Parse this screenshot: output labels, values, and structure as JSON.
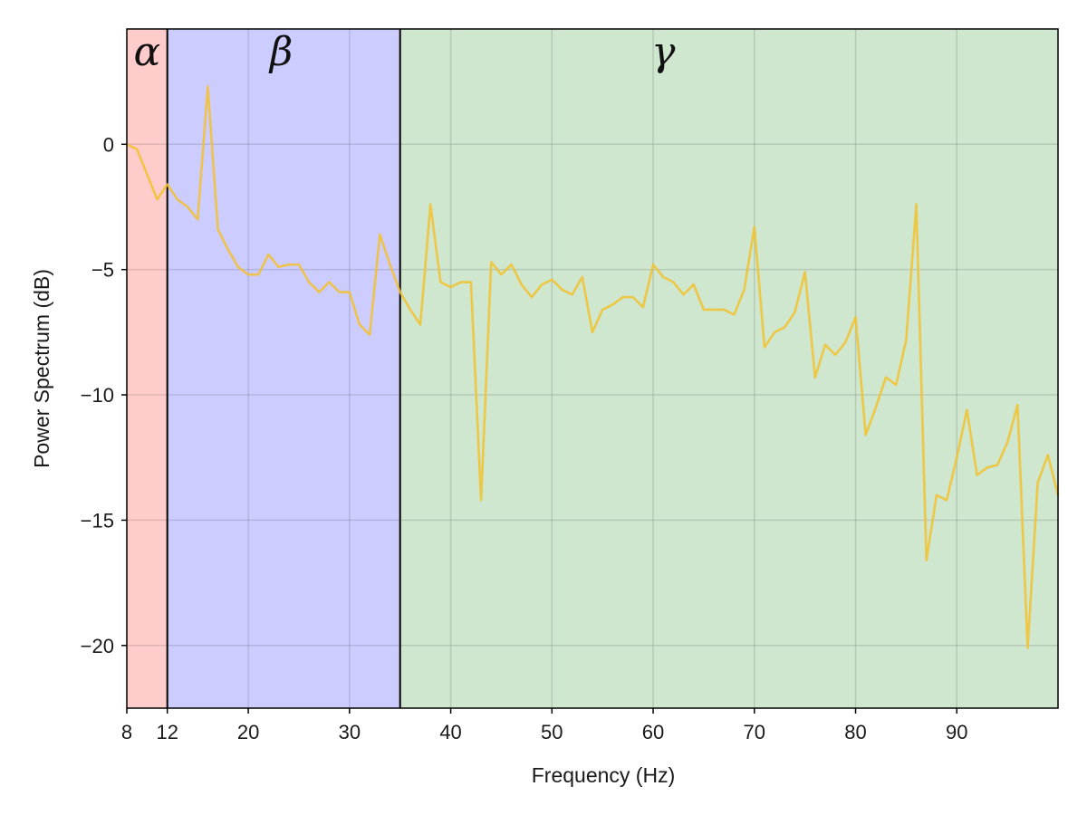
{
  "chart_data": {
    "type": "line",
    "xlabel": "Frequency (Hz)",
    "ylabel": "Power Spectrum (dB)",
    "xlim": [
      8,
      100
    ],
    "ylim": [
      -22.5,
      4.6
    ],
    "grid": true,
    "x_ticks": [
      8,
      12,
      20,
      30,
      40,
      50,
      60,
      70,
      80,
      90
    ],
    "x_tick_labels": [
      "8",
      "12",
      "20",
      "30",
      "40",
      "50",
      "60",
      "70",
      "80",
      "90"
    ],
    "y_ticks": [
      0,
      -5,
      -10,
      -15,
      -20
    ],
    "y_tick_labels": [
      "0",
      "−5",
      "−10",
      "−15",
      "−20"
    ],
    "bands": [
      {
        "label": "α",
        "x_start": 8,
        "x_end": 12,
        "color": "#ffcccc"
      },
      {
        "label": "β",
        "x_start": 12,
        "x_end": 35,
        "color": "#ccccff"
      },
      {
        "label": "γ",
        "x_start": 35,
        "x_end": 100,
        "color": "#cfe6cf"
      }
    ],
    "series": [
      {
        "color": "#f2c12e",
        "x": [
          8,
          9,
          10,
          11,
          12,
          13,
          14,
          15,
          16,
          17,
          18,
          19,
          20,
          21,
          22,
          23,
          24,
          25,
          26,
          27,
          28,
          29,
          30,
          31,
          32,
          33,
          34,
          35,
          36,
          37,
          38,
          39,
          40,
          41,
          42,
          43,
          44,
          45,
          46,
          47,
          48,
          49,
          50,
          51,
          52,
          53,
          54,
          55,
          56,
          57,
          58,
          59,
          60,
          61,
          62,
          63,
          64,
          65,
          66,
          67,
          68,
          69,
          70,
          71,
          72,
          73,
          74,
          75,
          76,
          77,
          78,
          79,
          80,
          81,
          82,
          83,
          84,
          85,
          86,
          87,
          88,
          89,
          90,
          91,
          92,
          93,
          94,
          95,
          96,
          97,
          98,
          99,
          100
        ],
        "values": [
          0,
          -0.2,
          -1.2,
          -2.2,
          -1.6,
          -2.2,
          -2.5,
          -3.0,
          2.3,
          -3.4,
          -4.2,
          -4.9,
          -5.2,
          -5.2,
          -4.4,
          -4.9,
          -4.8,
          -4.8,
          -5.5,
          -5.9,
          -5.5,
          -5.9,
          -5.9,
          -7.2,
          -7.6,
          -3.6,
          -4.8,
          -5.9,
          -6.6,
          -7.2,
          -2.4,
          -5.5,
          -5.7,
          -5.5,
          -5.5,
          -14.2,
          -4.7,
          -5.2,
          -4.8,
          -5.6,
          -6.1,
          -5.6,
          -5.4,
          -5.8,
          -6.0,
          -5.3,
          -7.5,
          -6.6,
          -6.4,
          -6.1,
          -6.1,
          -6.5,
          -4.8,
          -5.3,
          -5.5,
          -6.0,
          -5.6,
          -6.6,
          -6.6,
          -6.6,
          -6.8,
          -5.8,
          -3.3,
          -8.1,
          -7.5,
          -7.3,
          -6.7,
          -5.1,
          -9.3,
          -8.0,
          -8.4,
          -7.9,
          -6.9,
          -11.6,
          -10.5,
          -9.3,
          -9.6,
          -7.8,
          -2.4,
          -16.6,
          -14.0,
          -14.2,
          -12.5,
          -10.6,
          -13.2,
          -12.9,
          -12.8,
          -11.9,
          -10.4,
          -20.1,
          -13.5,
          -12.4,
          -14.0
        ]
      }
    ]
  }
}
